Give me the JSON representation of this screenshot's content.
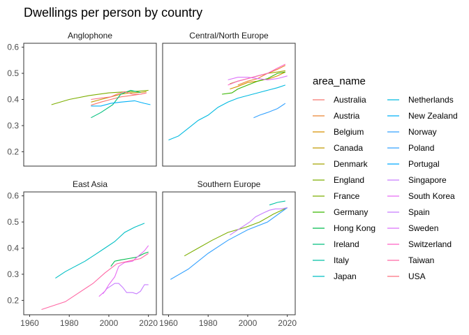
{
  "chart_data": {
    "type": "line",
    "title": "Dwellings per person by country",
    "xlabel": "",
    "ylabel": "",
    "xlim": [
      1957,
      2024
    ],
    "ylim": [
      0.15,
      0.6
    ],
    "x_ticks": [
      1960,
      1980,
      2000,
      2020
    ],
    "y_ticks": [
      0.2,
      0.3,
      0.4,
      0.5,
      0.6
    ],
    "grid": false,
    "legend_title": "area_name",
    "legend_position": "right",
    "facets": [
      "Anglophone",
      "Central/North Europe",
      "East Asia",
      "Southern Europe"
    ],
    "series": [
      {
        "name": "Australia",
        "color": "#F8766D",
        "facet": "Anglophone",
        "points": [
          [
            1991,
            0.378
          ],
          [
            1996,
            0.39
          ],
          [
            2001,
            0.4
          ],
          [
            2006,
            0.41
          ],
          [
            2011,
            0.415
          ],
          [
            2016,
            0.42
          ],
          [
            2019,
            0.425
          ]
        ]
      },
      {
        "name": "Austria",
        "color": "#EA8331",
        "facet": "Central/North Europe",
        "points": [
          [
            1995,
            0.455
          ],
          [
            2000,
            0.47
          ],
          [
            2005,
            0.48
          ],
          [
            2010,
            0.5
          ],
          [
            2015,
            0.515
          ],
          [
            2019,
            0.53
          ]
        ]
      },
      {
        "name": "Belgium",
        "color": "#D89000",
        "facet": "Central/North Europe",
        "points": [
          [
            1991,
            0.44
          ],
          [
            1995,
            0.45
          ],
          [
            2000,
            0.465
          ],
          [
            2005,
            0.47
          ],
          [
            2011,
            0.48
          ],
          [
            2015,
            0.49
          ],
          [
            2019,
            0.505
          ]
        ]
      },
      {
        "name": "Canada",
        "color": "#C09B00",
        "facet": "Anglophone",
        "points": [
          [
            1991,
            0.39
          ],
          [
            1996,
            0.4
          ],
          [
            2001,
            0.41
          ],
          [
            2006,
            0.42
          ],
          [
            2011,
            0.425
          ],
          [
            2016,
            0.427
          ],
          [
            2019,
            0.43
          ]
        ]
      },
      {
        "name": "Denmark",
        "color": "#A3A500",
        "facet": "Central/North Europe",
        "points": [
          [
            1991,
            0.46
          ],
          [
            1995,
            0.47
          ],
          [
            2000,
            0.48
          ],
          [
            2005,
            0.49
          ],
          [
            2010,
            0.5
          ],
          [
            2015,
            0.505
          ],
          [
            2019,
            0.51
          ]
        ]
      },
      {
        "name": "England",
        "color": "#7CAE00",
        "facet": "Anglophone",
        "points": [
          [
            1971,
            0.38
          ],
          [
            1980,
            0.4
          ],
          [
            1990,
            0.415
          ],
          [
            2000,
            0.425
          ],
          [
            2010,
            0.43
          ],
          [
            2015,
            0.432
          ],
          [
            2020,
            0.435
          ]
        ]
      },
      {
        "name": "France",
        "color": "#7CAE00",
        "facet": "Southern Europe",
        "points": [
          [
            1968,
            0.37
          ],
          [
            1975,
            0.4
          ],
          [
            1982,
            0.43
          ],
          [
            1990,
            0.46
          ],
          [
            1999,
            0.48
          ],
          [
            2006,
            0.5
          ],
          [
            2013,
            0.53
          ],
          [
            2020,
            0.555
          ]
        ]
      },
      {
        "name": "Germany",
        "color": "#39B600",
        "facet": "Central/North Europe",
        "points": [
          [
            1987,
            0.42
          ],
          [
            1992,
            0.425
          ],
          [
            1995,
            0.44
          ],
          [
            2000,
            0.455
          ],
          [
            2005,
            0.47
          ],
          [
            2010,
            0.48
          ],
          [
            2015,
            0.5
          ],
          [
            2019,
            0.505
          ]
        ]
      },
      {
        "name": "Hong Kong",
        "color": "#00BB4E",
        "facet": "East Asia",
        "points": [
          [
            2001,
            0.33
          ],
          [
            2003,
            0.35
          ],
          [
            2006,
            0.355
          ],
          [
            2010,
            0.36
          ],
          [
            2014,
            0.365
          ],
          [
            2018,
            0.38
          ],
          [
            2020,
            0.385
          ]
        ]
      },
      {
        "name": "Ireland",
        "color": "#00BF7D",
        "facet": "Anglophone",
        "points": [
          [
            1991,
            0.33
          ],
          [
            1996,
            0.35
          ],
          [
            2002,
            0.38
          ],
          [
            2006,
            0.42
          ],
          [
            2011,
            0.435
          ],
          [
            2016,
            0.427
          ]
        ]
      },
      {
        "name": "Italy",
        "color": "#00C1A3",
        "facet": "Southern Europe",
        "points": [
          [
            2011,
            0.565
          ],
          [
            2015,
            0.575
          ],
          [
            2019,
            0.58
          ]
        ]
      },
      {
        "name": "Japan",
        "color": "#00BFC4",
        "facet": "East Asia",
        "points": [
          [
            1973,
            0.285
          ],
          [
            1978,
            0.31
          ],
          [
            1983,
            0.33
          ],
          [
            1988,
            0.35
          ],
          [
            1993,
            0.375
          ],
          [
            1998,
            0.4
          ],
          [
            2003,
            0.425
          ],
          [
            2008,
            0.46
          ],
          [
            2013,
            0.48
          ],
          [
            2018,
            0.495
          ]
        ]
      },
      {
        "name": "Netherlands",
        "color": "#00BAE0",
        "facet": "Central/North Europe",
        "points": [
          [
            1960,
            0.245
          ],
          [
            1965,
            0.26
          ],
          [
            1970,
            0.29
          ],
          [
            1975,
            0.32
          ],
          [
            1980,
            0.34
          ],
          [
            1985,
            0.37
          ],
          [
            1990,
            0.39
          ],
          [
            1995,
            0.405
          ],
          [
            2000,
            0.415
          ],
          [
            2005,
            0.425
          ],
          [
            2010,
            0.435
          ],
          [
            2015,
            0.445
          ],
          [
            2019,
            0.455
          ]
        ]
      },
      {
        "name": "New Zealand",
        "color": "#00B0F6",
        "facet": "Anglophone",
        "points": [
          [
            1991,
            0.375
          ],
          [
            1996,
            0.375
          ],
          [
            2001,
            0.385
          ],
          [
            2006,
            0.39
          ],
          [
            2013,
            0.395
          ],
          [
            2018,
            0.385
          ],
          [
            2021,
            0.38
          ]
        ]
      },
      {
        "name": "Norway",
        "color": "#35A2FF",
        "facet": "Southern Europe",
        "points": [
          [
            1961,
            0.28
          ],
          [
            1970,
            0.32
          ],
          [
            1980,
            0.38
          ],
          [
            1990,
            0.43
          ],
          [
            2000,
            0.47
          ],
          [
            2010,
            0.5
          ],
          [
            2020,
            0.555
          ]
        ]
      },
      {
        "name": "Poland",
        "color": "#35A2FF",
        "facet": "Central/North Europe",
        "points": [
          [
            2003,
            0.33
          ],
          [
            2006,
            0.34
          ],
          [
            2010,
            0.35
          ],
          [
            2015,
            0.365
          ],
          [
            2018,
            0.38
          ],
          [
            2019,
            0.385
          ]
        ]
      },
      {
        "name": "Portugal",
        "color": "#00A9FF",
        "facet": "East Asia",
        "points": []
      },
      {
        "name": "Singapore",
        "color": "#C77CFF",
        "facet": "East Asia",
        "points": [
          [
            1997,
            0.225
          ],
          [
            1999,
            0.245
          ],
          [
            2001,
            0.255
          ],
          [
            2003,
            0.265
          ],
          [
            2005,
            0.265
          ],
          [
            2007,
            0.25
          ],
          [
            2009,
            0.23
          ],
          [
            2012,
            0.23
          ],
          [
            2014,
            0.225
          ],
          [
            2016,
            0.235
          ],
          [
            2018,
            0.26
          ],
          [
            2020,
            0.26
          ]
        ]
      },
      {
        "name": "South Korea",
        "color": "#E76BF3",
        "facet": "East Asia",
        "points": [
          [
            1995,
            0.215
          ],
          [
            1998,
            0.235
          ],
          [
            2000,
            0.26
          ],
          [
            2003,
            0.29
          ],
          [
            2005,
            0.33
          ],
          [
            2008,
            0.345
          ],
          [
            2012,
            0.35
          ],
          [
            2015,
            0.37
          ],
          [
            2018,
            0.39
          ],
          [
            2020,
            0.41
          ]
        ]
      },
      {
        "name": "Spain",
        "color": "#C77CFF",
        "facet": "Southern Europe",
        "points": [
          [
            1991,
            0.45
          ],
          [
            1995,
            0.47
          ],
          [
            2001,
            0.5
          ],
          [
            2004,
            0.52
          ],
          [
            2008,
            0.535
          ],
          [
            2011,
            0.545
          ],
          [
            2014,
            0.55
          ],
          [
            2017,
            0.55
          ],
          [
            2020,
            0.555
          ]
        ]
      },
      {
        "name": "Sweden",
        "color": "#DC71FA",
        "facet": "Central/North Europe",
        "points": [
          [
            1990,
            0.475
          ],
          [
            1995,
            0.485
          ],
          [
            2000,
            0.485
          ],
          [
            2005,
            0.48
          ],
          [
            2010,
            0.475
          ],
          [
            2015,
            0.48
          ],
          [
            2020,
            0.49
          ]
        ]
      },
      {
        "name": "Switzerland",
        "color": "#FF61C3",
        "facet": "Central/North Europe",
        "points": [
          [
            1990,
            0.455
          ],
          [
            1995,
            0.47
          ],
          [
            2000,
            0.48
          ],
          [
            2005,
            0.49
          ],
          [
            2010,
            0.5
          ],
          [
            2015,
            0.52
          ],
          [
            2019,
            0.535
          ]
        ]
      },
      {
        "name": "Taiwan",
        "color": "#FF67A4",
        "facet": "East Asia",
        "points": [
          [
            1966,
            0.165
          ],
          [
            1972,
            0.18
          ],
          [
            1978,
            0.195
          ],
          [
            1985,
            0.23
          ],
          [
            1992,
            0.265
          ],
          [
            1998,
            0.305
          ],
          [
            2004,
            0.34
          ],
          [
            2010,
            0.35
          ],
          [
            2016,
            0.36
          ],
          [
            2020,
            0.38
          ]
        ]
      },
      {
        "name": "USA",
        "color": "#FC717F",
        "facet": "Anglophone",
        "points": [
          [
            1991,
            0.4
          ],
          [
            1996,
            0.405
          ],
          [
            2001,
            0.41
          ],
          [
            2004,
            0.42
          ],
          [
            2008,
            0.43
          ],
          [
            2012,
            0.42
          ],
          [
            2016,
            0.42
          ],
          [
            2019,
            0.425
          ]
        ]
      }
    ]
  }
}
